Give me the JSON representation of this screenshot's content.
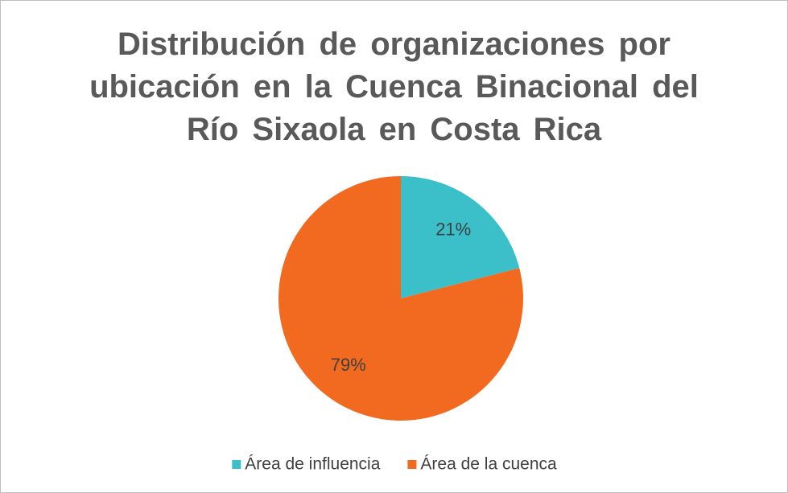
{
  "chart_data": {
    "type": "pie",
    "title": "Distribución de organizaciones por ubicación en la Cuenca Binacional del Río Sixaola en Costa Rica",
    "categories": [
      "Área de influencia",
      "Área de la cuenca"
    ],
    "values": [
      21,
      79
    ],
    "value_labels": [
      "21%",
      "79%"
    ],
    "colors": [
      "#3bbfc8",
      "#f26a1f"
    ],
    "legend": "bottom"
  }
}
